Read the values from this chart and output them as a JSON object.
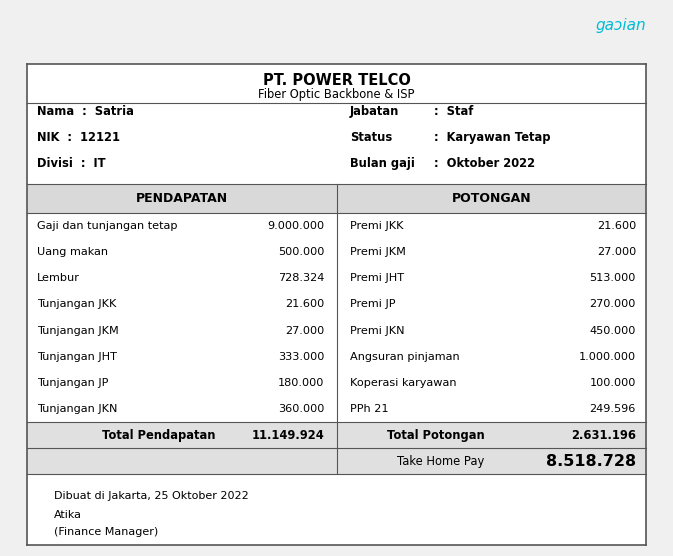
{
  "company_name": "PT. POWER TELCO",
  "company_subtitle": "Fiber Optic Backbone & ISP",
  "employee_info_left": [
    [
      "Nama",
      "Satria"
    ],
    [
      "NIK",
      "12121"
    ],
    [
      "Divisi",
      "IT"
    ]
  ],
  "employee_info_right": [
    [
      "Jabatan",
      "Staf"
    ],
    [
      "Status",
      "Karyawan Tetap"
    ],
    [
      "Bulan gaji",
      "Oktober 2022"
    ]
  ],
  "header_left": "PENDAPATAN",
  "header_right": "POTONGAN",
  "header_bg": "#d9d9d9",
  "pendapatan_rows": [
    [
      "Gaji dan tunjangan tetap",
      "9.000.000"
    ],
    [
      "Uang makan",
      "500.000"
    ],
    [
      "Lembur",
      "728.324"
    ],
    [
      "Tunjangan JKK",
      "21.600"
    ],
    [
      "Tunjangan JKM",
      "27.000"
    ],
    [
      "Tunjangan JHT",
      "333.000"
    ],
    [
      "Tunjangan JP",
      "180.000"
    ],
    [
      "Tunjangan JKN",
      "360.000"
    ]
  ],
  "potongan_rows": [
    [
      "Premi JKK",
      "21.600"
    ],
    [
      "Premi JKM",
      "27.000"
    ],
    [
      "Premi JHT",
      "513.000"
    ],
    [
      "Premi JP",
      "270.000"
    ],
    [
      "Premi JKN",
      "450.000"
    ],
    [
      "Angsuran pinjaman",
      "1.000.000"
    ],
    [
      "Koperasi karyawan",
      "100.000"
    ],
    [
      "PPh 21",
      "249.596"
    ]
  ],
  "total_pendapatan_label": "Total Pendapatan",
  "total_pendapatan_value": "11.149.924",
  "total_potongan_label": "Total Potongan",
  "total_potongan_value": "2.631.196",
  "take_home_label": "Take Home Pay",
  "take_home_value": "8.518.728",
  "footer_line1": "Dibuat di Jakarta, 25 Oktober 2022",
  "footer_line2": "Atika",
  "footer_line3": "(Finance Manager)",
  "logo_color": "#00bcd4",
  "border_color": "#555555",
  "bg_color": "#ffffff",
  "fig_bg": "#f0f0f0",
  "header_bg_color": "#d9d9d9",
  "total_row_bg": "#e0e0e0",
  "take_home_bg": "#e0e0e0"
}
